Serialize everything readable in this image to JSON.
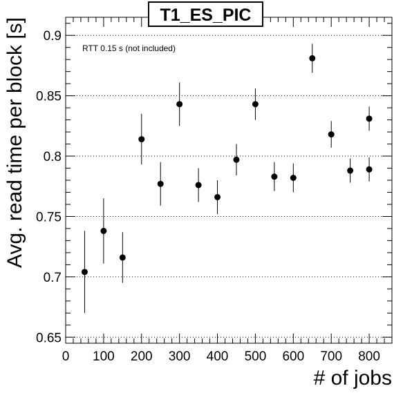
{
  "chart_data": {
    "type": "scatter",
    "title": "T1_ES_PIC",
    "xlabel": "# of jobs",
    "ylabel": "Avg. read time per block [s]",
    "annotation": "RTT 0.15 s (not included)",
    "xlim": [
      0,
      860
    ],
    "ylim": [
      0.645,
      0.915
    ],
    "xticks": [
      0,
      100,
      200,
      300,
      400,
      500,
      600,
      700,
      800
    ],
    "yticks": [
      0.65,
      0.7,
      0.75,
      0.8,
      0.85,
      0.9
    ],
    "ytick_labels": [
      "0.65",
      "0.7",
      "0.75",
      "0.8",
      "0.85",
      "0.9"
    ],
    "grid": "horizontal dotted",
    "points": [
      {
        "x": 50,
        "y": 0.704,
        "err": 0.034
      },
      {
        "x": 100,
        "y": 0.738,
        "err": 0.027
      },
      {
        "x": 150,
        "y": 0.716,
        "err": 0.021
      },
      {
        "x": 200,
        "y": 0.814,
        "err": 0.021
      },
      {
        "x": 250,
        "y": 0.777,
        "err": 0.018
      },
      {
        "x": 300,
        "y": 0.843,
        "err": 0.018
      },
      {
        "x": 350,
        "y": 0.776,
        "err": 0.014
      },
      {
        "x": 400,
        "y": 0.766,
        "err": 0.014
      },
      {
        "x": 450,
        "y": 0.797,
        "err": 0.013
      },
      {
        "x": 500,
        "y": 0.843,
        "err": 0.013
      },
      {
        "x": 550,
        "y": 0.783,
        "err": 0.012
      },
      {
        "x": 600,
        "y": 0.782,
        "err": 0.012
      },
      {
        "x": 650,
        "y": 0.881,
        "err": 0.012
      },
      {
        "x": 700,
        "y": 0.818,
        "err": 0.011
      },
      {
        "x": 750,
        "y": 0.788,
        "err": 0.01
      },
      {
        "x": 800,
        "y": 0.831,
        "err": 0.01
      },
      {
        "x": 800,
        "y": 0.789,
        "err": 0.01
      }
    ]
  }
}
